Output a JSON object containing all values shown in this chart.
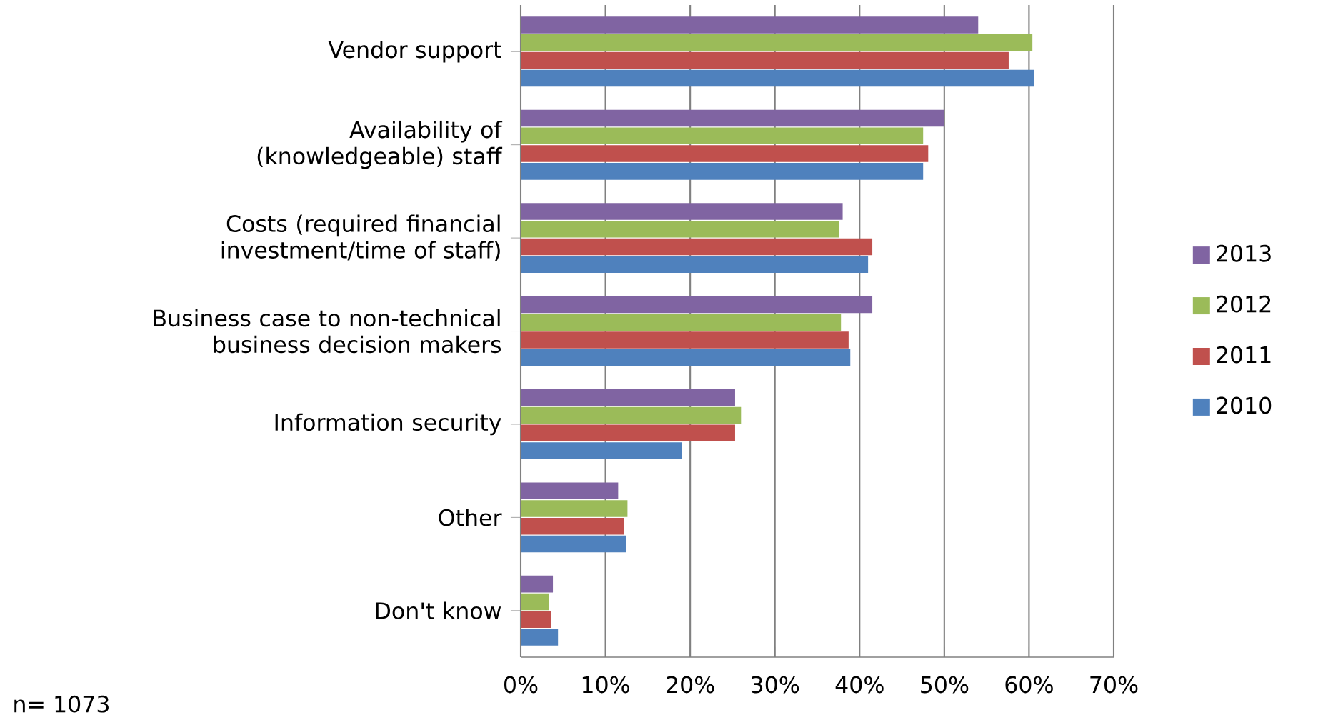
{
  "chart_data": {
    "type": "bar",
    "orientation": "horizontal",
    "categories": [
      "Vendor support",
      "Availability of (knowledgeable) staff",
      "Costs (required financial investment/time of staff)",
      "Business case to non-technical business decision makers",
      "Information security",
      "Other",
      "Don't know"
    ],
    "series": [
      {
        "name": "2013",
        "color": "#8064a2",
        "values": [
          54.0,
          50.0,
          38.0,
          41.5,
          25.3,
          11.5,
          3.8
        ]
      },
      {
        "name": "2012",
        "color": "#9bbb59",
        "values": [
          60.4,
          47.5,
          37.6,
          37.8,
          26.0,
          12.6,
          3.3
        ]
      },
      {
        "name": "2011",
        "color": "#c0504d",
        "values": [
          57.6,
          48.1,
          41.5,
          38.7,
          25.3,
          12.2,
          3.6
        ]
      },
      {
        "name": "2010",
        "color": "#4f81bd",
        "values": [
          60.6,
          47.5,
          41.0,
          38.9,
          19.0,
          12.4,
          4.4
        ]
      }
    ],
    "xlim": [
      0,
      70
    ],
    "xticks": [
      {
        "value": 0,
        "label": "0%"
      },
      {
        "value": 10,
        "label": "10%"
      },
      {
        "value": 20,
        "label": "20%"
      },
      {
        "value": 30,
        "label": "30%"
      },
      {
        "value": 40,
        "label": "40%"
      },
      {
        "value": 50,
        "label": "50%"
      },
      {
        "value": 60,
        "label": "60%"
      },
      {
        "value": 70,
        "label": "70%"
      }
    ],
    "grid": "x",
    "legend": "right",
    "annotations": [
      "n= 1073"
    ]
  }
}
